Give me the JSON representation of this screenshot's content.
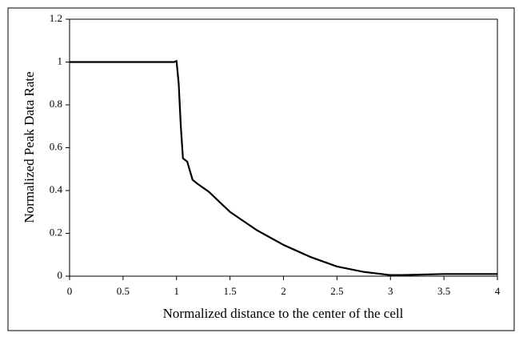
{
  "chart_data": {
    "type": "line",
    "x_label": "Normalized distance to the center of the cell",
    "y_label": "Normalized Peak Data Rate",
    "x": [
      0,
      0.5,
      0.95,
      0.98,
      1.0,
      1.02,
      1.04,
      1.06,
      1.1,
      1.15,
      1.2,
      1.3,
      1.5,
      1.75,
      2.0,
      2.25,
      2.5,
      2.75,
      3.0,
      3.1,
      3.5,
      4.0
    ],
    "series": [
      {
        "name": "Normalized Peak Data Rate",
        "color": "#000000",
        "values": [
          1,
          1,
          1,
          1.0,
          1.005,
          0.9,
          0.7,
          0.55,
          0.535,
          0.45,
          0.43,
          0.395,
          0.3,
          0.215,
          0.146,
          0.09,
          0.045,
          0.02,
          0.005,
          0.005,
          0.01,
          0.01
        ]
      }
    ],
    "xlim": [
      0,
      4
    ],
    "xticks": [
      0,
      0.5,
      1,
      1.5,
      2,
      2.5,
      3,
      3.5,
      4
    ],
    "ylim": [
      0,
      1.2
    ],
    "yticks": [
      0,
      0.2,
      0.4,
      0.6,
      0.8,
      1,
      1.2
    ],
    "grid": false
  }
}
